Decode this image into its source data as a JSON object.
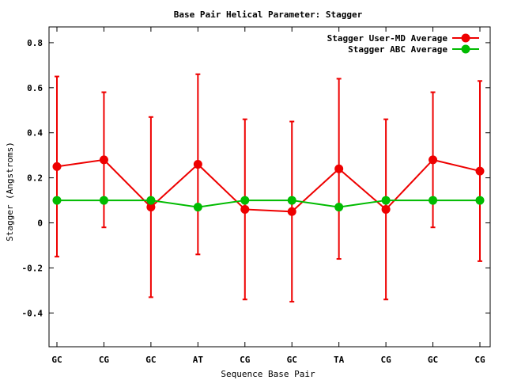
{
  "chart_data": {
    "type": "line",
    "title": "Base Pair Helical Parameter: Stagger",
    "xlabel": "Sequence Base Pair",
    "ylabel": "Stagger (Angstroms)",
    "categories": [
      "GC",
      "CG",
      "GC",
      "AT",
      "CG",
      "GC",
      "TA",
      "CG",
      "GC",
      "CG"
    ],
    "ylim": [
      -0.55,
      0.87
    ],
    "yticks": [
      {
        "value": -0.4,
        "label": "-0.4"
      },
      {
        "value": -0.2,
        "label": "-0.2"
      },
      {
        "value": 0,
        "label": "0"
      },
      {
        "value": 0.2,
        "label": "0.2"
      },
      {
        "value": 0.4,
        "label": "0.4"
      },
      {
        "value": 0.6,
        "label": "0.6"
      },
      {
        "value": 0.8,
        "label": "0.8"
      }
    ],
    "grid": false,
    "legend_position": "top-right",
    "series": [
      {
        "name": "Stagger User-MD Average",
        "color": "#ee0000",
        "values": [
          0.25,
          0.28,
          0.07,
          0.26,
          0.06,
          0.05,
          0.24,
          0.06,
          0.28,
          0.23
        ],
        "error_low": [
          -0.15,
          -0.02,
          -0.33,
          -0.14,
          -0.34,
          -0.35,
          -0.16,
          -0.34,
          -0.02,
          -0.17
        ],
        "error_high": [
          0.65,
          0.58,
          0.47,
          0.66,
          0.46,
          0.45,
          0.64,
          0.46,
          0.58,
          0.63
        ]
      },
      {
        "name": "Stagger ABC Average",
        "color": "#00bb00",
        "values": [
          0.1,
          0.1,
          0.1,
          0.07,
          0.1,
          0.1,
          0.07,
          0.1,
          0.1,
          0.1
        ]
      }
    ]
  }
}
